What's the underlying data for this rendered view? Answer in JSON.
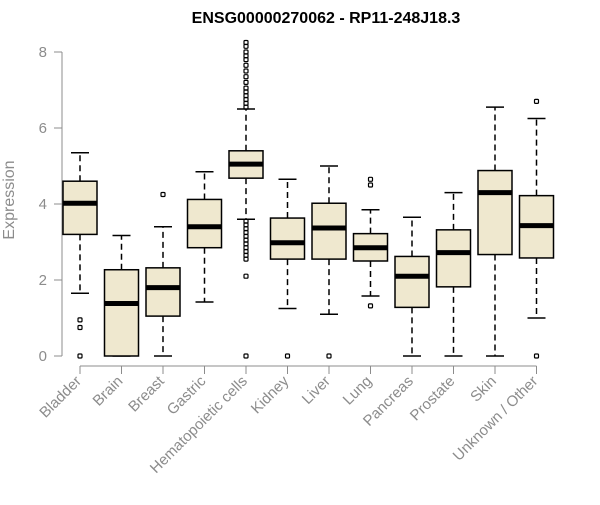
{
  "colors": {
    "box_fill": "#efe8cf",
    "box_stroke": "#000000",
    "median": "#000000",
    "axis": "#8c8c8c",
    "text": "#8c8c8c",
    "title": "#000000"
  },
  "chart_data": {
    "type": "boxplot",
    "title": "ENSG00000270062 - RP11-248J18.3",
    "xlabel": "",
    "ylabel": "Expression",
    "ylim": [
      0,
      8.2
    ],
    "yticks": [
      0,
      2,
      4,
      6,
      8
    ],
    "grid": false,
    "categories": [
      "Bladder",
      "Brain",
      "Breast",
      "Gastric",
      "Hematopoietic cells",
      "Kidney",
      "Liver",
      "Lung",
      "Pancreas",
      "Prostate",
      "Skin",
      "Unknown / Other"
    ],
    "boxes": [
      {
        "category": "Bladder",
        "whisker_low": 1.65,
        "q1": 3.2,
        "median": 4.02,
        "q3": 4.6,
        "whisker_high": 5.35,
        "outliers": [
          0.95,
          0.75,
          0.0
        ]
      },
      {
        "category": "Brain",
        "whisker_low": 0.0,
        "q1": 0.0,
        "median": 1.38,
        "q3": 2.27,
        "whisker_high": 3.17,
        "outliers": []
      },
      {
        "category": "Breast",
        "whisker_low": 0.0,
        "q1": 1.05,
        "median": 1.8,
        "q3": 2.32,
        "whisker_high": 3.4,
        "outliers": [
          4.25
        ]
      },
      {
        "category": "Gastric",
        "whisker_low": 1.42,
        "q1": 2.85,
        "median": 3.4,
        "q3": 4.12,
        "whisker_high": 4.85,
        "outliers": []
      },
      {
        "category": "Hematopoietic cells",
        "whisker_low": 3.6,
        "q1": 4.68,
        "median": 5.05,
        "q3": 5.4,
        "whisker_high": 6.5,
        "outliers": [
          8.25,
          8.15,
          8.0,
          7.9,
          7.8,
          7.65,
          7.5,
          7.35,
          7.2,
          7.05,
          6.95,
          6.85,
          6.75,
          6.65,
          6.55,
          3.55,
          3.45,
          3.35,
          3.25,
          3.15,
          3.05,
          2.95,
          2.85,
          2.75,
          2.65,
          2.55,
          2.1,
          0.0
        ]
      },
      {
        "category": "Kidney",
        "whisker_low": 1.25,
        "q1": 2.55,
        "median": 2.98,
        "q3": 3.63,
        "whisker_high": 4.65,
        "outliers": [
          0.0
        ]
      },
      {
        "category": "Liver",
        "whisker_low": 1.1,
        "q1": 2.55,
        "median": 3.37,
        "q3": 4.02,
        "whisker_high": 5.0,
        "outliers": [
          0.0
        ]
      },
      {
        "category": "Lung",
        "whisker_low": 1.58,
        "q1": 2.5,
        "median": 2.85,
        "q3": 3.22,
        "whisker_high": 3.85,
        "outliers": [
          4.65,
          4.5,
          1.32
        ]
      },
      {
        "category": "Pancreas",
        "whisker_low": 0.0,
        "q1": 1.28,
        "median": 2.1,
        "q3": 2.62,
        "whisker_high": 3.65,
        "outliers": []
      },
      {
        "category": "Prostate",
        "whisker_low": 0.0,
        "q1": 1.82,
        "median": 2.72,
        "q3": 3.32,
        "whisker_high": 4.3,
        "outliers": []
      },
      {
        "category": "Skin",
        "whisker_low": 0.0,
        "q1": 2.67,
        "median": 4.3,
        "q3": 4.88,
        "whisker_high": 6.55,
        "outliers": []
      },
      {
        "category": "Unknown / Other",
        "whisker_low": 1.0,
        "q1": 2.58,
        "median": 3.43,
        "q3": 4.22,
        "whisker_high": 6.25,
        "outliers": [
          6.7,
          0.0
        ]
      }
    ]
  }
}
